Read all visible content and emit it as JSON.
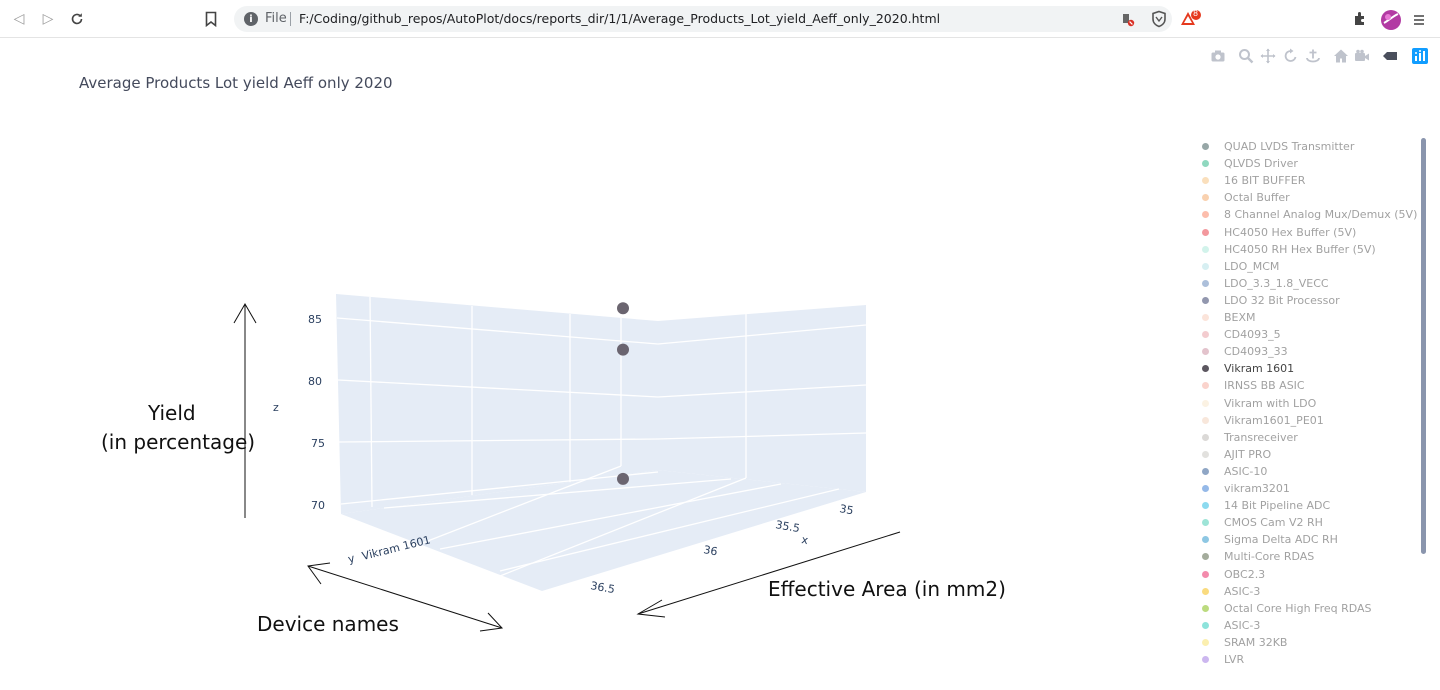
{
  "browser": {
    "scheme_label": "File",
    "url": "F:/Coding/github_repos/AutoPlot/docs/reports_dir/1/1/Average_Products_Lot_yield_Aeff_only_2020.html",
    "icons": [
      "back-icon",
      "forward-icon",
      "reload-icon",
      "bookmark-icon",
      "site-info-icon",
      "blocked-content-icon",
      "brave-shield-icon",
      "brave-rewards-icon",
      "extensions-icon",
      "profile-avatar",
      "menu-icon"
    ],
    "rewards_badge": "8"
  },
  "modebar": {
    "buttons": [
      "camera-icon",
      "zoom-icon",
      "pan-icon",
      "orbit-rotation-icon",
      "turntable-rotation-icon",
      "reset-camera-icon",
      "last-save-camera-icon",
      "hover-toggle-icon",
      "plotly-logo-icon"
    ]
  },
  "chart_data": {
    "type": "scatter3d",
    "title": "Average Products Lot yield Aeff only 2020",
    "axes": {
      "x": {
        "title": "x",
        "ticks": [
          "35",
          "35.5",
          "36",
          "36.5"
        ]
      },
      "y": {
        "title": "y",
        "ticks": [
          "Vikram 1601"
        ]
      },
      "z": {
        "title": "z",
        "ticks": [
          "70",
          "75",
          "80",
          "85"
        ],
        "range": [
          68,
          87
        ]
      }
    },
    "points": [
      {
        "series": "Vikram 1601",
        "x": 35.7,
        "y": "Vikram 1601",
        "z": 84.6
      },
      {
        "series": "Vikram 1601",
        "x": 35.7,
        "y": "Vikram 1601",
        "z": 81.4
      },
      {
        "series": "Vikram 1601",
        "x": 35.7,
        "y": "Vikram 1601",
        "z": 71.4
      }
    ],
    "point_color": "#6b6570",
    "legend": [
      {
        "name": "QUAD LVDS Transmitter",
        "color": "#2f4f4f",
        "visible": false
      },
      {
        "name": "QLVDS Driver",
        "color": "#20b27f",
        "visible": false
      },
      {
        "name": "16 BIT BUFFER",
        "color": "#f5c07a",
        "visible": false
      },
      {
        "name": "Octal Buffer",
        "color": "#f4a460",
        "visible": false
      },
      {
        "name": "8 Channel Analog Mux/Demux (5V)",
        "color": "#fa7c5a",
        "visible": false
      },
      {
        "name": "HC4050 Hex Buffer (5V)",
        "color": "#e8323c",
        "visible": false
      },
      {
        "name": "HC4050 RH Hex Buffer (5V)",
        "color": "#a6e8d8",
        "visible": false
      },
      {
        "name": "LDO_MCM",
        "color": "#b0e0e6",
        "visible": false
      },
      {
        "name": "LDO_3.3_1.8_VECC",
        "color": "#5a7fb5",
        "visible": false
      },
      {
        "name": "LDO 32 Bit Processor",
        "color": "#26305e",
        "visible": false
      },
      {
        "name": "BEXM",
        "color": "#f7c9b6",
        "visible": false
      },
      {
        "name": "CD4093_5",
        "color": "#e89aa0",
        "visible": false
      },
      {
        "name": "CD4093_33",
        "color": "#c8879a",
        "visible": false
      },
      {
        "name": "Vikram 1601",
        "color": "#5c5760",
        "visible": true
      },
      {
        "name": "IRNSS BB ASIC",
        "color": "#f5a89a",
        "visible": false
      },
      {
        "name": "Vikram with LDO",
        "color": "#f8e6c8",
        "visible": false
      },
      {
        "name": "Vikram1601_PE01",
        "color": "#f2d0b8",
        "visible": false
      },
      {
        "name": "Transreceiver",
        "color": "#b8b4b0",
        "visible": false
      },
      {
        "name": "AJIT PRO",
        "color": "#c6c4be",
        "visible": false
      },
      {
        "name": "ASIC-10",
        "color": "#1f4e8c",
        "visible": false
      },
      {
        "name": "vikram3201",
        "color": "#2c73d2",
        "visible": false
      },
      {
        "name": "14 Bit Pipeline ADC",
        "color": "#1ab5e0",
        "visible": false
      },
      {
        "name": "CMOS Cam V2 RH",
        "color": "#3cc9b0",
        "visible": false
      },
      {
        "name": "Sigma Delta ADC RH",
        "color": "#1e90c8",
        "visible": false
      },
      {
        "name": "Multi-Core RDAS",
        "color": "#4a5a3a",
        "visible": false
      },
      {
        "name": "OBC2.3",
        "color": "#e8185a",
        "visible": false
      },
      {
        "name": "ASIC-3",
        "color": "#f5b800",
        "visible": false
      },
      {
        "name": "Octal Core High Freq RDAS",
        "color": "#7ab800",
        "visible": false
      },
      {
        "name": "ASIC-3",
        "color": "#1cc8b8",
        "visible": false
      },
      {
        "name": "SRAM 32KB",
        "color": "#f8e060",
        "visible": false
      },
      {
        "name": "LVR",
        "color": "#9a70e0",
        "visible": false
      }
    ]
  },
  "annotations": {
    "yield_line1": "Yield",
    "yield_line2": "(in percentage)",
    "effective_area": "Effective Area (in mm2)",
    "device_names": "Device names"
  }
}
